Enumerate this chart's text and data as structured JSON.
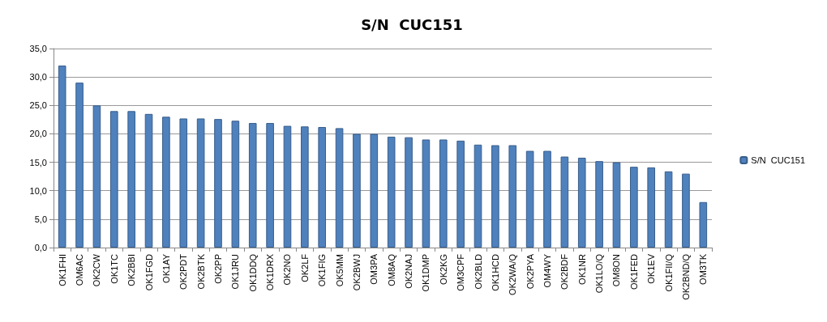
{
  "chart_data": {
    "type": "bar",
    "title": "S/N  CUC151",
    "categories": [
      "OK1FHI",
      "OM6AC",
      "OK2CW",
      "OK1TC",
      "OK2BBI",
      "OK1FGD",
      "OK1AY",
      "OK2PDT",
      "OK2BTK",
      "OK2PP",
      "OK1JRU",
      "OK1DDQ",
      "OK1DRX",
      "OK2NO",
      "OK2LF",
      "OK1FIG",
      "OK5MM",
      "OK2BWJ",
      "OM3PA",
      "OM8AQ",
      "OK2NAJ",
      "OK1DMP",
      "OK2KG",
      "OM3CPF",
      "OK2BLD",
      "OK1HCD",
      "OK2WA/Q",
      "OK2PYA",
      "OM4WY",
      "OK2BDF",
      "OK1NR",
      "OK1LO/Q",
      "OM8ON",
      "OK1FED",
      "OK1EV",
      "OK1FII/Q",
      "OK2BND/Q",
      "OM3TK"
    ],
    "series": [
      {
        "name": "S/N  CUC151",
        "color": "#4f81bd",
        "values": [
          32,
          29,
          25,
          24,
          24,
          23.5,
          23,
          22.7,
          22.7,
          22.6,
          22.3,
          21.9,
          21.9,
          21.4,
          21.3,
          21.2,
          21,
          20,
          20,
          19.5,
          19.4,
          19,
          19,
          18.8,
          18.1,
          18,
          18,
          17,
          17,
          16,
          15.8,
          15.2,
          15,
          14.2,
          14.1,
          13.4,
          13,
          8
        ]
      }
    ],
    "ylim": [
      0,
      35
    ],
    "yticks": [
      {
        "value": 0,
        "label": "0,0"
      },
      {
        "value": 5,
        "label": "5,0"
      },
      {
        "value": 10,
        "label": "10,0"
      },
      {
        "value": 15,
        "label": "15,0"
      },
      {
        "value": 20,
        "label": "20,0"
      },
      {
        "value": 25,
        "label": "25,0"
      },
      {
        "value": 30,
        "label": "30,0"
      },
      {
        "value": 35,
        "label": "35,0"
      }
    ],
    "grid": "y",
    "legend": "right"
  }
}
